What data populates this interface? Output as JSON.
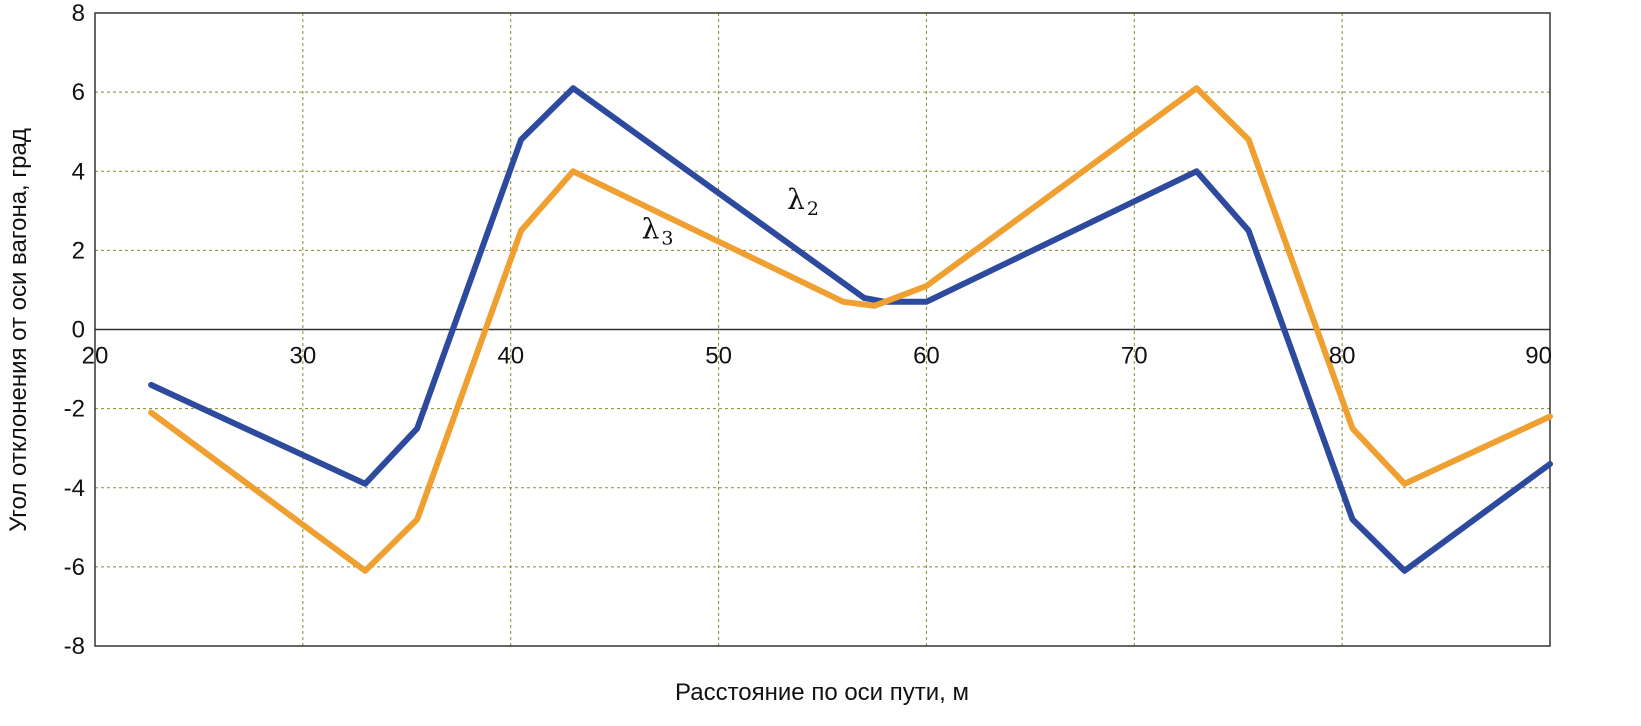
{
  "chart_data": {
    "type": "line",
    "title": "",
    "xlabel": "Расстояние по оси пути, м",
    "ylabel": "Угол отклонения от оси вагона, град",
    "xlim": [
      20,
      90
    ],
    "ylim": [
      -8,
      8
    ],
    "x_ticks": [
      20,
      30,
      40,
      50,
      60,
      70,
      80,
      90
    ],
    "y_ticks": [
      8,
      6,
      4,
      2,
      0,
      -2,
      -4,
      -6,
      -8
    ],
    "grid": true,
    "legend": "none (series labeled inline)",
    "colors": {
      "series_blue": "#2e4a9e",
      "series_orange": "#f0a030",
      "grid": "#8a8a2a",
      "axis": "#333333",
      "plot_background": "#ffffff"
    },
    "series": [
      {
        "name": "λ",
        "subscript": "2",
        "color": "#2e4a9e",
        "points": [
          [
            22.7,
            -1.4
          ],
          [
            33.0,
            -3.9
          ],
          [
            35.5,
            -2.5
          ],
          [
            40.5,
            4.8
          ],
          [
            43.0,
            6.1
          ],
          [
            57.0,
            0.8
          ],
          [
            58.0,
            0.7
          ],
          [
            60.0,
            0.7
          ],
          [
            73.0,
            4.0
          ],
          [
            75.5,
            2.5
          ],
          [
            80.5,
            -4.8
          ],
          [
            83.0,
            -6.1
          ],
          [
            90.0,
            -3.4
          ]
        ]
      },
      {
        "name": "λ",
        "subscript": "3",
        "color": "#f0a030",
        "points": [
          [
            22.7,
            -2.1
          ],
          [
            33.0,
            -6.1
          ],
          [
            35.5,
            -4.8
          ],
          [
            40.5,
            2.5
          ],
          [
            43.0,
            4.0
          ],
          [
            56.0,
            0.7
          ],
          [
            57.5,
            0.6
          ],
          [
            60.0,
            1.1
          ],
          [
            73.0,
            6.1
          ],
          [
            75.5,
            4.8
          ],
          [
            80.5,
            -2.5
          ],
          [
            83.0,
            -3.9
          ],
          [
            90.0,
            -2.2
          ]
        ]
      }
    ],
    "annotations": [
      {
        "text": "λ",
        "subscript": "2",
        "x": 53.3,
        "y": 3.05
      },
      {
        "text": "λ",
        "subscript": "3",
        "x": 46.3,
        "y": 2.3
      }
    ]
  }
}
